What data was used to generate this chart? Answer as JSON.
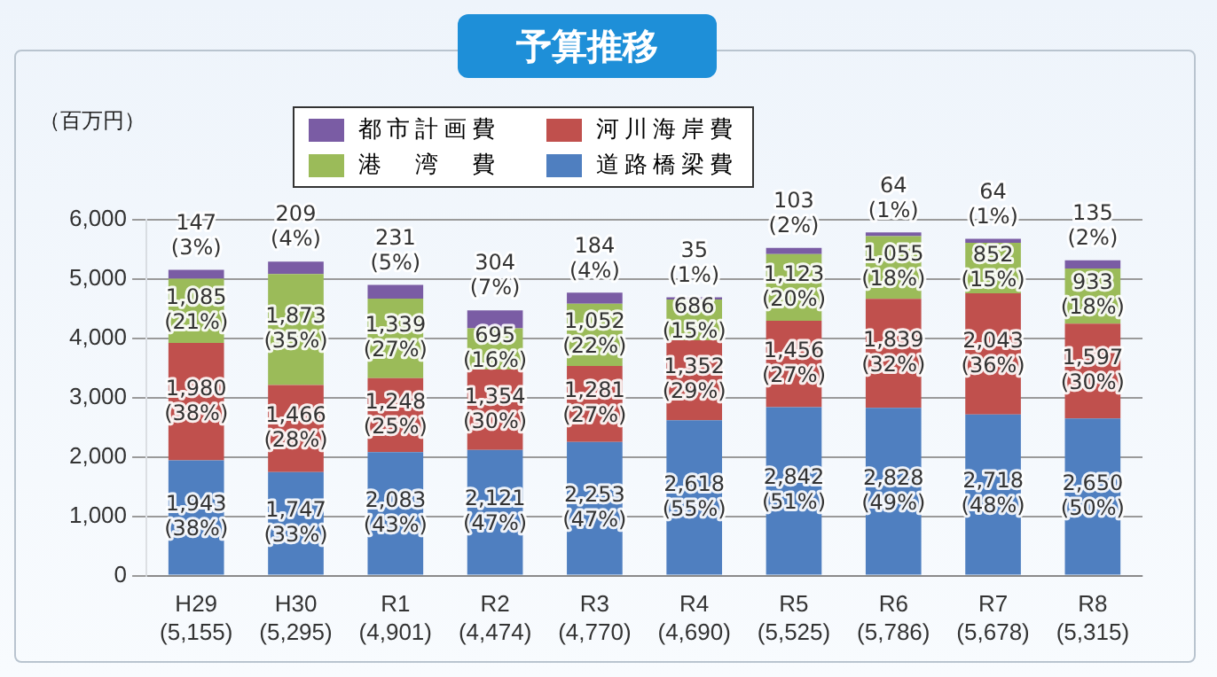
{
  "chart_data": {
    "type": "bar",
    "title": "予算推移",
    "ylabel": "（百万円）",
    "categories": [
      "H29\n(5,155)",
      "H30\n(5,295)",
      "R1\n(4,901)",
      "R2\n(4,474)",
      "R3\n(4,770)",
      "R4\n(4,690)",
      "R5\n(5,525)",
      "R6\n(5,786)",
      "R7\n(5,678)",
      "R8\n(5,315)"
    ],
    "stacked": true,
    "ylim": [
      0,
      6000
    ],
    "yticks": [
      0,
      {
        "value": 1000,
        "label": "1,000"
      },
      {
        "value": 2000,
        "label": "2,000"
      },
      {
        "value": 3000,
        "label": "3,000"
      },
      {
        "value": 4000,
        "label": "4,000"
      },
      {
        "value": 5000,
        "label": "5,000"
      },
      {
        "value": 6000,
        "label": "6,000"
      }
    ],
    "grid": "y",
    "legend": "top",
    "series": [
      {
        "name": "道路橋梁費",
        "color": "#4f7fc0",
        "values": [
          1943,
          1747,
          2083,
          2121,
          2253,
          2618,
          2842,
          2828,
          2718,
          2650
        ],
        "value_labels": [
          "1,943\n(38%)",
          "1,747\n(33%)",
          "2,083\n(43%)",
          "2,121\n(47%)",
          "2,253\n(47%)",
          "2,618\n(55%)",
          "2,842\n(51%)",
          "2,828\n(49%)",
          "2,718\n(48%)",
          "2,650\n(50%)"
        ]
      },
      {
        "name": "河川海岸費",
        "color": "#c0504d",
        "values": [
          1980,
          1466,
          1248,
          1354,
          1281,
          1352,
          1456,
          1839,
          2043,
          1597
        ],
        "value_labels": [
          "1,980\n(38%)",
          "1,466\n(28%)",
          "1,248\n(25%)",
          "1,354\n(30%)",
          "1,281\n(27%)",
          "1,352\n(29%)",
          "1,456\n(27%)",
          "1,839\n(32%)",
          "2,043\n(36%)",
          "1,597\n(30%)"
        ]
      },
      {
        "name": "港　湾　費",
        "color": "#9bbb59",
        "values": [
          1085,
          1873,
          1339,
          695,
          1052,
          686,
          1123,
          1055,
          852,
          933
        ],
        "value_labels": [
          "1,085\n(21%)",
          "1,873\n(35%)",
          "1,339\n(27%)",
          "695\n(16%)",
          "1,052\n(22%)",
          "686\n(15%)",
          "1,123\n(20%)",
          "1,055\n(18%)",
          "852\n(15%)",
          "933\n(18%)"
        ]
      },
      {
        "name": "都市計画費",
        "color": "#7a5ca4",
        "values": [
          147,
          209,
          231,
          304,
          184,
          35,
          103,
          64,
          64,
          135
        ],
        "value_labels": [
          "147\n(3%)",
          "209\n(4%)",
          "231\n(5%)",
          "304\n(7%)",
          "184\n(4%)",
          "35\n(1%)",
          "103\n(2%)",
          "64\n(1%)",
          "64\n(1%)",
          "135\n(2%)"
        ]
      }
    ]
  }
}
